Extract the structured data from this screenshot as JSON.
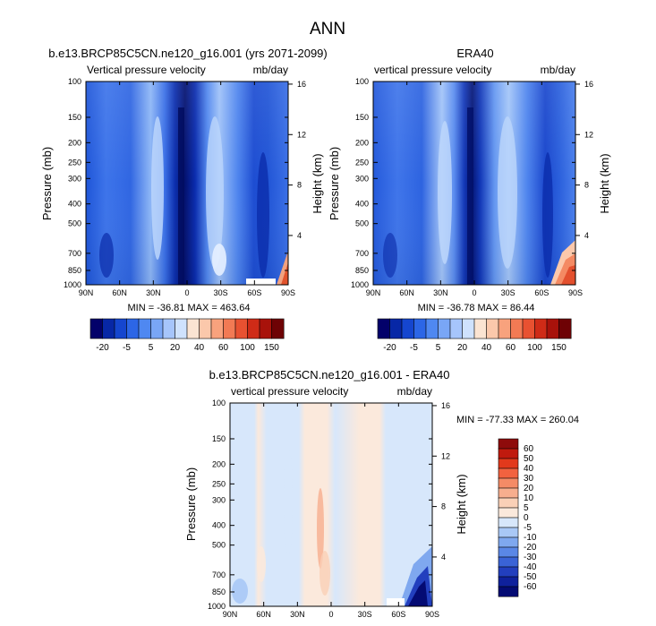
{
  "figure": {
    "title": "ANN",
    "panels": {
      "model": {
        "title": "b.e13.BRCP85C5CN.ne120_g16.001 (yrs 2071-2099)",
        "left_label": "Vertical pressure velocity",
        "right_label": "mb/day",
        "stats": "MIN = -36.81  MAX = 463.64"
      },
      "obs": {
        "title": "ERA40",
        "left_label": "vertical pressure velocity",
        "right_label": "mb/day",
        "stats": "MIN = -36.78  MAX =  86.44"
      },
      "diff": {
        "title": "b.e13.BRCP85C5CN.ne120_g16.001 - ERA40",
        "left_label": "vertical pressure velocity",
        "right_label": "mb/day",
        "stats": "MIN = -77.33  MAX = 260.04"
      }
    },
    "axis_labels": {
      "left": "Pressure (mb)",
      "right": "Height (km)"
    }
  },
  "chart_data": [
    {
      "type": "heatmap",
      "panel": "model",
      "title": "b.e13.BRCP85C5CN.ne120_g16.001 (yrs 2071-2099)",
      "left_label": "Vertical pressure velocity",
      "right_label": "mb/day",
      "ylabel": "Pressure (mb)",
      "y2label": "Height (km)",
      "x_ticks": [
        "90N",
        "60N",
        "30N",
        "0",
        "30S",
        "60S",
        "90S"
      ],
      "y_ticks": [
        100,
        150,
        200,
        250,
        300,
        400,
        500,
        700,
        850,
        1000
      ],
      "y2_ticks": [
        4,
        8,
        12,
        16
      ],
      "stats": "MIN = -36.81  MAX = 463.64",
      "colorbar_levels": [
        "-20",
        "-5",
        "5",
        "20",
        "40",
        "60",
        "100",
        "150"
      ],
      "colorbar_colors": [
        "#03016a",
        "#0727a6",
        "#1546cf",
        "#2c66e6",
        "#4f88f1",
        "#79a6f6",
        "#a6c5fb",
        "#cfe2fd",
        "#fbe4d2",
        "#fbc8ab",
        "#f8a27d",
        "#f27a54",
        "#e85131",
        "#cf2b17",
        "#a8120b",
        "#6e0205"
      ]
    },
    {
      "type": "heatmap",
      "panel": "obs",
      "title": "ERA40",
      "left_label": "vertical pressure velocity",
      "right_label": "mb/day",
      "ylabel": "Pressure (mb)",
      "y2label": "Height (km)",
      "x_ticks": [
        "90N",
        "60N",
        "30N",
        "0",
        "30S",
        "60S",
        "90S"
      ],
      "y_ticks": [
        100,
        150,
        200,
        250,
        300,
        400,
        500,
        700,
        850,
        1000
      ],
      "y2_ticks": [
        4,
        8,
        12,
        16
      ],
      "stats": "MIN = -36.78  MAX =  86.44",
      "colorbar_levels": [
        "-20",
        "-5",
        "5",
        "20",
        "40",
        "60",
        "100",
        "150"
      ],
      "colorbar_colors": [
        "#03016a",
        "#0727a6",
        "#1546cf",
        "#2c66e6",
        "#4f88f1",
        "#79a6f6",
        "#a6c5fb",
        "#cfe2fd",
        "#fbe4d2",
        "#fbc8ab",
        "#f8a27d",
        "#f27a54",
        "#e85131",
        "#cf2b17",
        "#a8120b",
        "#6e0205"
      ]
    },
    {
      "type": "heatmap",
      "panel": "diff",
      "title": "b.e13.BRCP85C5CN.ne120_g16.001 - ERA40",
      "left_label": "vertical pressure velocity",
      "right_label": "mb/day",
      "ylabel": "Pressure (mb)",
      "y2label": "Height (km)",
      "x_ticks": [
        "90N",
        "60N",
        "30N",
        "0",
        "30S",
        "60S",
        "90S"
      ],
      "y_ticks": [
        100,
        150,
        200,
        250,
        300,
        400,
        500,
        700,
        850,
        1000
      ],
      "y2_ticks": [
        4,
        8,
        12,
        16
      ],
      "stats": "MIN = -77.33  MAX = 260.04",
      "colorbar_levels": [
        "60",
        "50",
        "40",
        "30",
        "20",
        "10",
        "5",
        "0",
        "-5",
        "-10",
        "-20",
        "-30",
        "-40",
        "-50",
        "-60"
      ],
      "colorbar_colors": [
        "#8e0b0b",
        "#c01a0e",
        "#e2391c",
        "#f2623f",
        "#f48b66",
        "#f7ae8e",
        "#fad0b7",
        "#fbe9dc",
        "#d7e7fb",
        "#a9c8f6",
        "#7fa8ef",
        "#5a87e6",
        "#3a63d6",
        "#223fbe",
        "#0f219c",
        "#040b73"
      ]
    }
  ]
}
